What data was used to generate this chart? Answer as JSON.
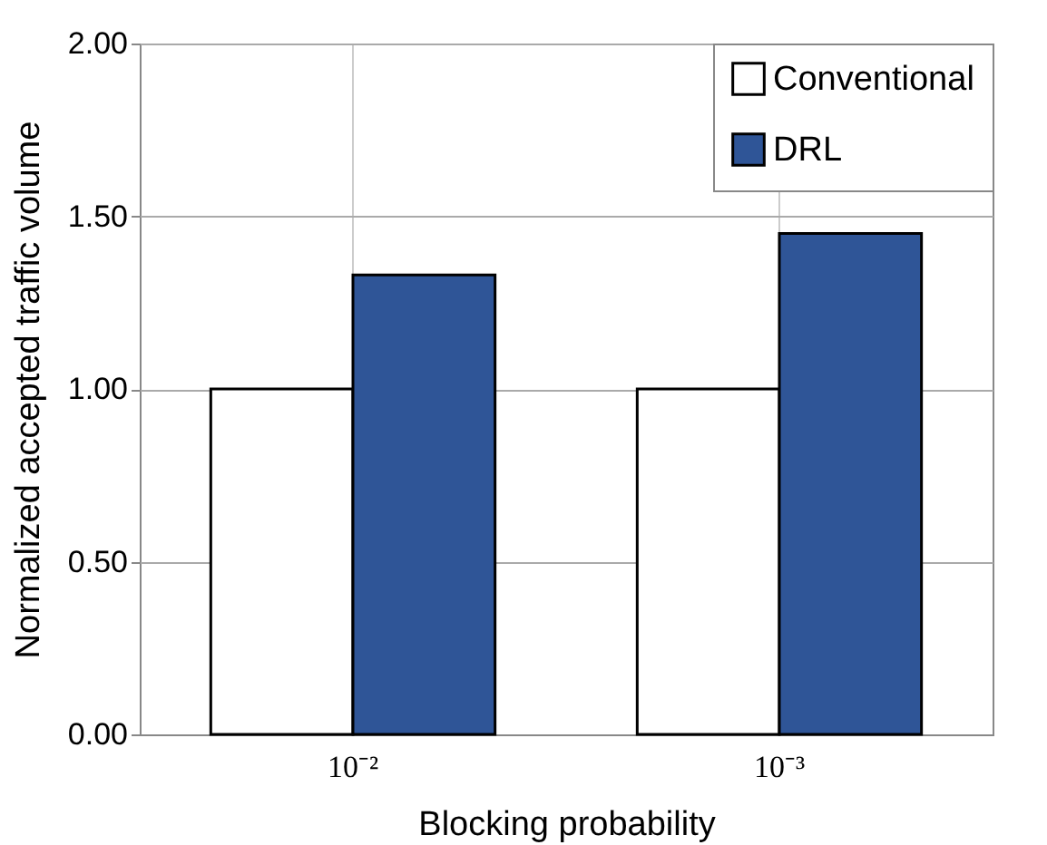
{
  "chart_data": {
    "type": "bar",
    "xlabel": "Blocking probability",
    "ylabel": "Normalized accepted traffic volume",
    "categories": [
      "10⁻²",
      "10⁻³"
    ],
    "series": [
      {
        "name": "Conventional",
        "color": "#ffffff",
        "values": [
          1.0,
          1.0
        ]
      },
      {
        "name": "DRL",
        "color": "#2f5597",
        "values": [
          1.33,
          1.45
        ]
      }
    ],
    "ylim": [
      0,
      2
    ],
    "yticks": [
      {
        "value": 0,
        "label": "0.00"
      },
      {
        "value": 0.5,
        "label": "0.50"
      },
      {
        "value": 1,
        "label": "1.00"
      },
      {
        "value": 1.5,
        "label": "1.50"
      },
      {
        "value": 2,
        "label": "2.00"
      }
    ],
    "grid": true,
    "legend": "top right"
  }
}
